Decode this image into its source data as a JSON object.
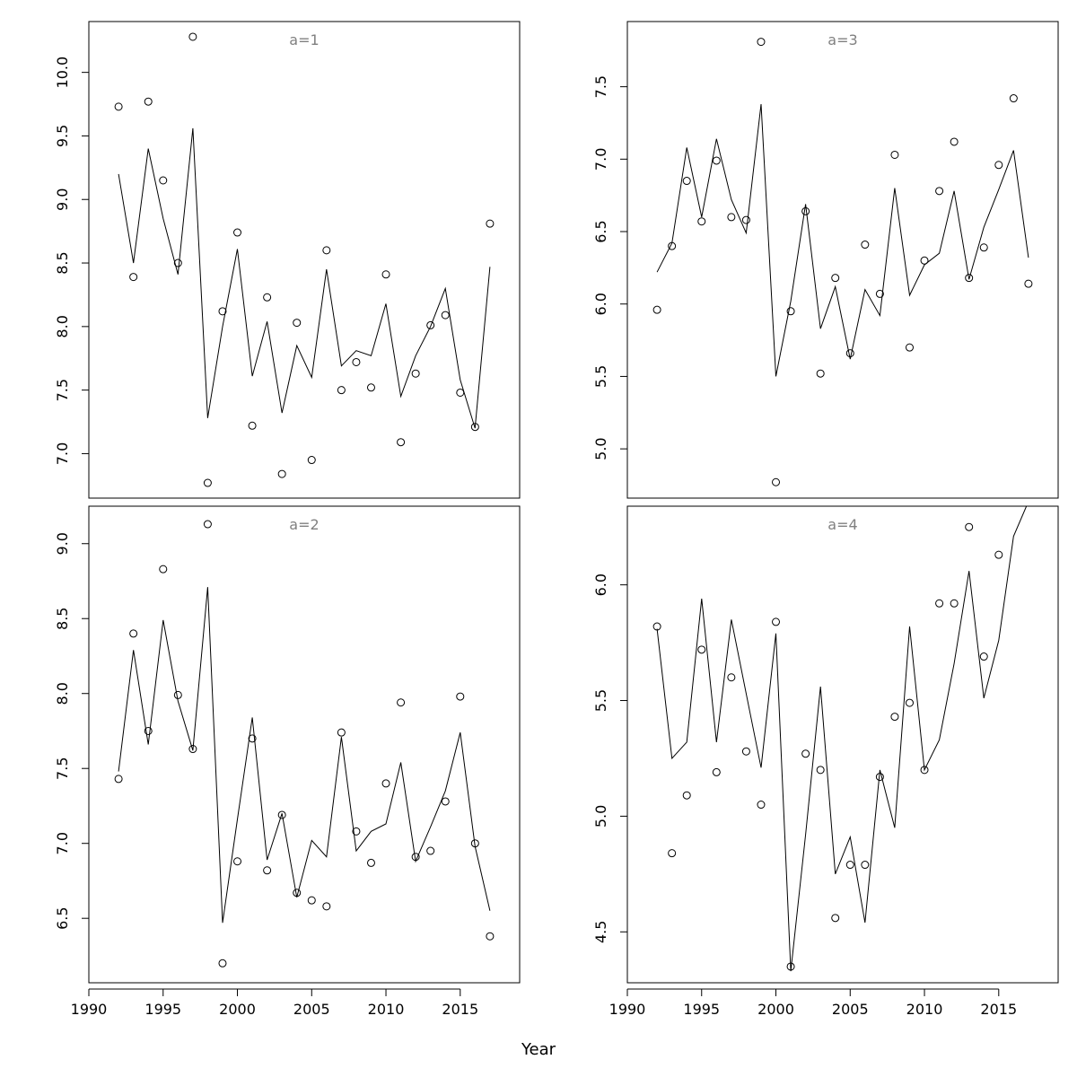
{
  "figure": {
    "xlabel": "Year"
  },
  "chart_data": [
    {
      "type": "scatter",
      "title": "a=1",
      "xlim": [
        1990,
        2019
      ],
      "ylim": [
        6.65,
        10.4
      ],
      "xticks": [
        1990,
        1995,
        2000,
        2005,
        2010,
        2015
      ],
      "yticks": [
        7.0,
        7.5,
        8.0,
        8.5,
        9.0,
        9.5,
        10.0
      ],
      "ytick_labels": [
        "7.0",
        "7.5",
        "8.0",
        "8.5",
        "9.0",
        "9.5",
        "10.0"
      ],
      "x": [
        1992,
        1993,
        1994,
        1995,
        1996,
        1997,
        1998,
        1999,
        2000,
        2001,
        2002,
        2003,
        2004,
        2005,
        2006,
        2007,
        2008,
        2009,
        2010,
        2011,
        2012,
        2013,
        2014,
        2015,
        2016,
        2017
      ],
      "points": [
        9.73,
        8.39,
        9.77,
        9.15,
        8.5,
        10.28,
        6.77,
        8.12,
        8.74,
        7.22,
        8.23,
        6.84,
        8.03,
        6.95,
        8.6,
        7.5,
        7.72,
        7.52,
        8.41,
        7.09,
        7.63,
        8.01,
        8.09,
        7.48,
        7.21,
        8.81
      ],
      "line": [
        9.2,
        8.5,
        9.4,
        8.85,
        8.41,
        9.56,
        7.28,
        8.0,
        8.61,
        7.61,
        8.04,
        7.32,
        7.85,
        7.6,
        8.45,
        7.69,
        7.81,
        7.77,
        8.18,
        7.45,
        7.77,
        8.0,
        8.3,
        7.58,
        7.2,
        8.47
      ],
      "x_axis_shown": false
    },
    {
      "type": "scatter",
      "title": "a=3",
      "xlim": [
        1990,
        2019
      ],
      "ylim": [
        4.66,
        7.95
      ],
      "xticks": [
        1990,
        1995,
        2000,
        2005,
        2010,
        2015
      ],
      "yticks": [
        5.0,
        5.5,
        6.0,
        6.5,
        7.0,
        7.5
      ],
      "ytick_labels": [
        "5.0",
        "5.5",
        "6.0",
        "6.5",
        "7.0",
        "7.5"
      ],
      "x": [
        1992,
        1993,
        1994,
        1995,
        1996,
        1997,
        1998,
        1999,
        2000,
        2001,
        2002,
        2003,
        2004,
        2005,
        2006,
        2007,
        2008,
        2009,
        2010,
        2011,
        2012,
        2013,
        2014,
        2015,
        2016,
        2017
      ],
      "points": [
        5.96,
        6.4,
        6.85,
        6.57,
        6.99,
        6.6,
        6.58,
        7.81,
        4.77,
        5.95,
        6.64,
        5.52,
        6.18,
        5.66,
        6.41,
        6.07,
        7.03,
        5.7,
        6.3,
        6.78,
        7.12,
        6.18,
        6.39,
        6.96,
        7.42,
        6.14
      ],
      "line": [
        6.22,
        6.42,
        7.08,
        6.6,
        7.14,
        6.72,
        6.49,
        7.38,
        5.5,
        6.02,
        6.69,
        5.83,
        6.12,
        5.62,
        6.1,
        5.92,
        6.8,
        6.06,
        6.27,
        6.35,
        6.78,
        6.17,
        6.53,
        6.79,
        7.06,
        6.32
      ],
      "x_axis_shown": false
    },
    {
      "type": "scatter",
      "title": "a=2",
      "xlim": [
        1990,
        2019
      ],
      "ylim": [
        6.07,
        9.25
      ],
      "xticks": [
        1990,
        1995,
        2000,
        2005,
        2010,
        2015
      ],
      "yticks": [
        6.5,
        7.0,
        7.5,
        8.0,
        8.5,
        9.0
      ],
      "ytick_labels": [
        "6.5",
        "7.0",
        "7.5",
        "8.0",
        "8.5",
        "9.0"
      ],
      "x": [
        1992,
        1993,
        1994,
        1995,
        1996,
        1997,
        1998,
        1999,
        2000,
        2001,
        2002,
        2003,
        2004,
        2005,
        2006,
        2007,
        2008,
        2009,
        2010,
        2011,
        2012,
        2013,
        2014,
        2015,
        2016,
        2017
      ],
      "points": [
        7.43,
        8.4,
        7.75,
        8.83,
        7.99,
        7.63,
        9.13,
        6.2,
        6.88,
        7.7,
        6.82,
        7.19,
        6.67,
        6.62,
        6.58,
        7.74,
        7.08,
        6.87,
        7.4,
        7.94,
        6.91,
        6.95,
        7.28,
        7.98,
        7.0,
        6.38
      ],
      "line": [
        7.48,
        8.29,
        7.66,
        8.49,
        7.95,
        7.62,
        8.71,
        6.47,
        7.16,
        7.84,
        6.89,
        7.2,
        6.64,
        7.02,
        6.91,
        7.71,
        6.95,
        7.08,
        7.13,
        7.54,
        6.88,
        7.11,
        7.35,
        7.74,
        6.98,
        6.55
      ],
      "x_axis_shown": true
    },
    {
      "type": "scatter",
      "title": "a=4",
      "xlim": [
        1990,
        2019
      ],
      "ylim": [
        4.28,
        6.34
      ],
      "xticks": [
        1990,
        1995,
        2000,
        2005,
        2010,
        2015
      ],
      "yticks": [
        4.5,
        5.0,
        5.5,
        6.0
      ],
      "ytick_labels": [
        "4.5",
        "5.0",
        "5.5",
        "6.0"
      ],
      "x": [
        1992,
        1993,
        1994,
        1995,
        1996,
        1997,
        1998,
        1999,
        2000,
        2001,
        2002,
        2003,
        2004,
        2005,
        2006,
        2007,
        2008,
        2009,
        2010,
        2011,
        2012,
        2013,
        2014,
        2015,
        2016,
        2017
      ],
      "points": [
        5.82,
        4.84,
        5.09,
        5.72,
        5.19,
        5.6,
        5.28,
        5.05,
        5.84,
        4.35,
        5.27,
        5.2,
        4.56,
        4.79,
        4.79,
        5.17,
        5.43,
        5.49,
        5.2,
        5.92,
        5.92,
        6.25,
        5.69,
        6.13,
        null,
        null
      ],
      "line": [
        5.81,
        5.25,
        5.32,
        5.94,
        5.32,
        5.85,
        5.53,
        5.21,
        5.79,
        4.33,
        4.92,
        5.56,
        4.75,
        4.91,
        4.54,
        5.2,
        4.95,
        5.82,
        5.2,
        5.33,
        5.66,
        6.06,
        5.51,
        5.76,
        6.21,
        6.36
      ],
      "x_axis_shown": true
    }
  ]
}
